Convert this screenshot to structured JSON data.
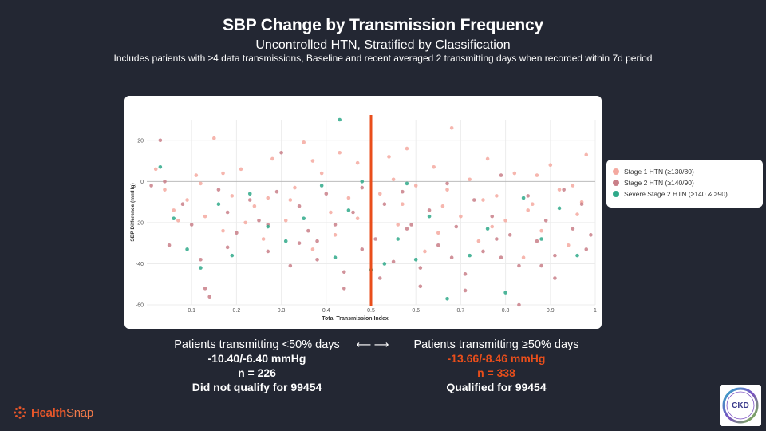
{
  "header": {
    "title": "SBP Change by Transmission Frequency",
    "subtitle": "Uncontrolled HTN, Stratified by Classification",
    "note": "Includes patients with ≥4 data transmissions, Baseline and recent averaged 2 transmitting days when recorded within 7d period"
  },
  "chart_data": {
    "type": "scatter",
    "xlabel": "Total Transmission Index",
    "ylabel": "SBP Difference (mmHg)",
    "xlim": [
      0,
      1
    ],
    "ylim": [
      -60,
      30
    ],
    "xticks": [
      0.1,
      0.2,
      0.3,
      0.4,
      0.5,
      0.6,
      0.7,
      0.8,
      0.9,
      1
    ],
    "xtick_labels": [
      "0.1",
      "0.2",
      "0.3",
      "0.4",
      "0.5",
      "0.6",
      "0.7",
      "0.8",
      "0.9",
      "1"
    ],
    "yticks": [
      -60,
      -40,
      -20,
      0,
      20
    ],
    "ytick_labels": [
      "-60",
      "-40",
      "-20",
      "0",
      "20"
    ],
    "threshold_x": 0.5,
    "threshold_color": "#e94e1b",
    "legend_position": "right",
    "series": [
      {
        "name": "Stage 1 HTN (≥130/80)",
        "color": "#f4a9a0",
        "points": [
          [
            0.02,
            6
          ],
          [
            0.04,
            -4
          ],
          [
            0.06,
            -14
          ],
          [
            0.09,
            -9
          ],
          [
            0.11,
            3
          ],
          [
            0.13,
            -17
          ],
          [
            0.15,
            21
          ],
          [
            0.17,
            -24
          ],
          [
            0.19,
            -7
          ],
          [
            0.21,
            6
          ],
          [
            0.24,
            -12
          ],
          [
            0.26,
            -28
          ],
          [
            0.28,
            11
          ],
          [
            0.31,
            -19
          ],
          [
            0.33,
            -3
          ],
          [
            0.35,
            19
          ],
          [
            0.37,
            -33
          ],
          [
            0.39,
            4
          ],
          [
            0.41,
            -15
          ],
          [
            0.43,
            14
          ],
          [
            0.45,
            -8
          ],
          [
            0.47,
            9
          ],
          [
            0.52,
            -6
          ],
          [
            0.54,
            12
          ],
          [
            0.56,
            -21
          ],
          [
            0.58,
            16
          ],
          [
            0.6,
            -2
          ],
          [
            0.62,
            -34
          ],
          [
            0.64,
            7
          ],
          [
            0.66,
            -12
          ],
          [
            0.68,
            26
          ],
          [
            0.7,
            -17
          ],
          [
            0.72,
            1
          ],
          [
            0.74,
            -29
          ],
          [
            0.76,
            11
          ],
          [
            0.78,
            -7
          ],
          [
            0.8,
            -19
          ],
          [
            0.82,
            4
          ],
          [
            0.84,
            -37
          ],
          [
            0.86,
            -11
          ],
          [
            0.88,
            -24
          ],
          [
            0.9,
            8
          ],
          [
            0.92,
            -4
          ],
          [
            0.94,
            -31
          ],
          [
            0.96,
            -16
          ],
          [
            0.98,
            13
          ],
          [
            0.12,
            -1
          ],
          [
            0.22,
            -20
          ],
          [
            0.32,
            -9
          ],
          [
            0.42,
            -26
          ],
          [
            0.55,
            1
          ],
          [
            0.65,
            -25
          ],
          [
            0.75,
            -9
          ],
          [
            0.85,
            -14
          ],
          [
            0.95,
            -2
          ],
          [
            0.07,
            -19
          ],
          [
            0.17,
            4
          ],
          [
            0.27,
            -8
          ],
          [
            0.37,
            10
          ],
          [
            0.47,
            -18
          ],
          [
            0.57,
            -11
          ],
          [
            0.67,
            -4
          ],
          [
            0.77,
            -22
          ],
          [
            0.87,
            3
          ],
          [
            0.97,
            -10
          ]
        ]
      },
      {
        "name": "Stage 2 HTN (≥140/90)",
        "color": "#c97f88",
        "points": [
          [
            0.01,
            -2
          ],
          [
            0.03,
            20
          ],
          [
            0.05,
            -31
          ],
          [
            0.08,
            -11
          ],
          [
            0.1,
            -21
          ],
          [
            0.12,
            -38
          ],
          [
            0.14,
            -56
          ],
          [
            0.16,
            -4
          ],
          [
            0.18,
            -15
          ],
          [
            0.2,
            -25
          ],
          [
            0.23,
            -9
          ],
          [
            0.25,
            -19
          ],
          [
            0.27,
            -34
          ],
          [
            0.29,
            -5
          ],
          [
            0.3,
            14
          ],
          [
            0.32,
            -41
          ],
          [
            0.34,
            -12
          ],
          [
            0.36,
            -24
          ],
          [
            0.38,
            -38
          ],
          [
            0.4,
            -6
          ],
          [
            0.42,
            -21
          ],
          [
            0.44,
            -44
          ],
          [
            0.46,
            -15
          ],
          [
            0.48,
            -3
          ],
          [
            0.51,
            -28
          ],
          [
            0.53,
            -11
          ],
          [
            0.55,
            -39
          ],
          [
            0.57,
            -5
          ],
          [
            0.59,
            -21
          ],
          [
            0.61,
            -42
          ],
          [
            0.63,
            -14
          ],
          [
            0.65,
            -31
          ],
          [
            0.67,
            -1
          ],
          [
            0.69,
            -22
          ],
          [
            0.71,
            -45
          ],
          [
            0.73,
            -9
          ],
          [
            0.75,
            -34
          ],
          [
            0.77,
            -17
          ],
          [
            0.79,
            3
          ],
          [
            0.81,
            -26
          ],
          [
            0.83,
            -41
          ],
          [
            0.85,
            -7
          ],
          [
            0.87,
            -29
          ],
          [
            0.89,
            -19
          ],
          [
            0.91,
            -36
          ],
          [
            0.93,
            -4
          ],
          [
            0.95,
            -23
          ],
          [
            0.97,
            -11
          ],
          [
            0.99,
            -26
          ],
          [
            0.13,
            -52
          ],
          [
            0.27,
            -21
          ],
          [
            0.38,
            -29
          ],
          [
            0.44,
            -52
          ],
          [
            0.52,
            -47
          ],
          [
            0.61,
            -51
          ],
          [
            0.71,
            -53
          ],
          [
            0.79,
            -37
          ],
          [
            0.83,
            -60
          ],
          [
            0.91,
            -47
          ],
          [
            0.04,
            0
          ],
          [
            0.18,
            -32
          ],
          [
            0.34,
            -30
          ],
          [
            0.48,
            -33
          ],
          [
            0.58,
            -23
          ],
          [
            0.68,
            -37
          ],
          [
            0.78,
            -28
          ],
          [
            0.88,
            -41
          ],
          [
            0.98,
            -33
          ]
        ]
      },
      {
        "name": "Severe Stage 2 HTN (≥140 & ≥90)",
        "color": "#2fa98a",
        "points": [
          [
            0.03,
            7
          ],
          [
            0.06,
            -18
          ],
          [
            0.09,
            -33
          ],
          [
            0.12,
            -42
          ],
          [
            0.16,
            -11
          ],
          [
            0.19,
            -36
          ],
          [
            0.23,
            -6
          ],
          [
            0.27,
            -22
          ],
          [
            0.31,
            -29
          ],
          [
            0.35,
            -18
          ],
          [
            0.39,
            -2
          ],
          [
            0.42,
            -37
          ],
          [
            0.45,
            -14
          ],
          [
            0.48,
            0
          ],
          [
            0.5,
            -43
          ],
          [
            0.53,
            -40
          ],
          [
            0.56,
            -28
          ],
          [
            0.6,
            -38
          ],
          [
            0.63,
            -17
          ],
          [
            0.67,
            -57
          ],
          [
            0.72,
            -36
          ],
          [
            0.76,
            -23
          ],
          [
            0.8,
            -54
          ],
          [
            0.84,
            -8
          ],
          [
            0.88,
            -28
          ],
          [
            0.92,
            -13
          ],
          [
            0.96,
            -36
          ],
          [
            0.43,
            30
          ],
          [
            0.58,
            -1
          ]
        ]
      }
    ]
  },
  "left_group": {
    "label": "Patients transmitting <50% days",
    "values": "-10.40/-6.40 mmHg",
    "n": "n = 226",
    "status": "Did not qualify for 99454"
  },
  "arrow": "⟵  ⟶",
  "right_group": {
    "label": "Patients transmitting ≥50% days",
    "values": "-13.66/-8.46 mmHg",
    "n": "n = 338",
    "status": "Qualified for 99454"
  },
  "brand": {
    "name_part1": "Health",
    "name_part2": "Snap",
    "color": "#e5562a"
  },
  "badge": {
    "text": "CKD"
  }
}
